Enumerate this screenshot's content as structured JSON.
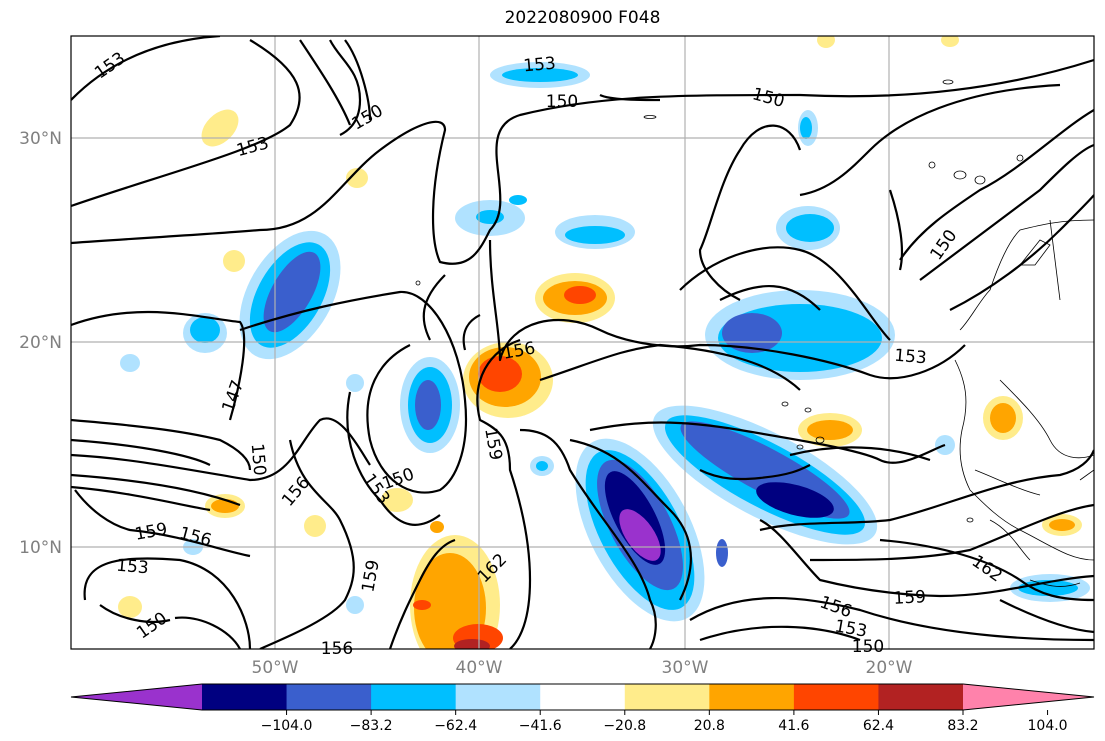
{
  "title": "2022080900 F048",
  "map": {
    "lat_labels": [
      "30°N",
      "20°N",
      "10°N"
    ],
    "lon_labels": [
      "50°W",
      "40°W",
      "30°W",
      "20°W"
    ],
    "contour_labels": [
      {
        "text": "153"
      },
      {
        "text": "150"
      },
      {
        "text": "153"
      },
      {
        "text": "153"
      },
      {
        "text": "150"
      },
      {
        "text": "150"
      },
      {
        "text": "150"
      },
      {
        "text": "153"
      },
      {
        "text": "156"
      },
      {
        "text": "147"
      },
      {
        "text": "150"
      },
      {
        "text": "150"
      },
      {
        "text": "153"
      },
      {
        "text": "159"
      },
      {
        "text": "156"
      },
      {
        "text": "159"
      },
      {
        "text": "156"
      },
      {
        "text": "153"
      },
      {
        "text": "162"
      },
      {
        "text": "159"
      },
      {
        "text": "156"
      },
      {
        "text": "153"
      },
      {
        "text": "150"
      },
      {
        "text": "159"
      },
      {
        "text": "162"
      },
      {
        "text": "150"
      },
      {
        "text": "156"
      }
    ]
  },
  "colorbar": {
    "ticks": [
      "−104.0",
      "−83.2",
      "−62.4",
      "−41.6",
      "−20.8",
      "20.8",
      "41.6",
      "62.4",
      "83.2",
      "104.0"
    ],
    "colors": [
      "#9a32cd",
      "#000080",
      "#3a5fcd",
      "#00bfff",
      "#b0e2ff",
      "#ffffff",
      "#ffec8b",
      "#ffa500",
      "#ff4500",
      "#b22222",
      "#ff82ab"
    ]
  }
}
